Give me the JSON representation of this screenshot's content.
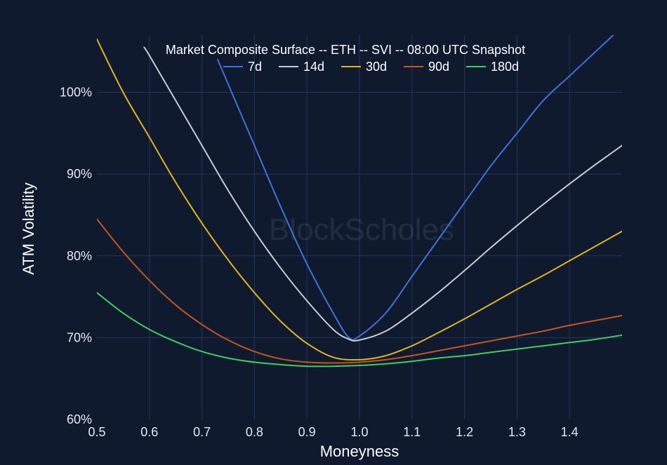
{
  "chart_data": {
    "type": "line",
    "title": "Market Composite Surface -- ETH -- SVI -- 08:00 UTC Snapshot",
    "xlabel": "Moneyness",
    "ylabel": "ATM Volatility",
    "watermark": "BlockScholes",
    "xlim": [
      0.5,
      1.5
    ],
    "ylim": [
      60,
      107
    ],
    "x_ticks": [
      "0.5",
      "0.6",
      "0.7",
      "0.8",
      "0.9",
      "1.0",
      "1.1",
      "1.2",
      "1.3",
      "1.4"
    ],
    "x_tick_values": [
      0.5,
      0.6,
      0.7,
      0.8,
      0.9,
      1.0,
      1.1,
      1.2,
      1.3,
      1.4
    ],
    "y_ticks": [
      "60%",
      "70%",
      "80%",
      "90%",
      "100%"
    ],
    "y_tick_values": [
      60,
      70,
      80,
      90,
      100
    ],
    "grid": true,
    "legend_position": "top",
    "series": [
      {
        "name": "7d",
        "color": "#3b74d9",
        "x": [
          0.73,
          0.75,
          0.8,
          0.85,
          0.9,
          0.95,
          0.98,
          1.0,
          1.05,
          1.1,
          1.15,
          1.2,
          1.25,
          1.3,
          1.35,
          1.4,
          1.45,
          1.5
        ],
        "y": [
          104,
          101,
          93.5,
          86,
          79,
          73,
          70,
          70.2,
          73,
          77.5,
          82,
          86.5,
          91,
          95,
          99,
          102,
          105,
          108
        ]
      },
      {
        "name": "14d",
        "color": "#c8ccd2",
        "x": [
          0.59,
          0.6,
          0.65,
          0.7,
          0.75,
          0.8,
          0.85,
          0.9,
          0.95,
          0.98,
          1.0,
          1.05,
          1.1,
          1.15,
          1.2,
          1.25,
          1.3,
          1.35,
          1.4,
          1.45,
          1.5
        ],
        "y": [
          105.5,
          104.5,
          99,
          93.5,
          88,
          83,
          78.5,
          74.5,
          71,
          69.8,
          69.7,
          70.8,
          73,
          75.5,
          78.2,
          81,
          83.7,
          86.3,
          88.8,
          91.2,
          93.5
        ]
      },
      {
        "name": "30d",
        "color": "#e0b21e",
        "x": [
          0.5,
          0.55,
          0.6,
          0.65,
          0.7,
          0.75,
          0.8,
          0.85,
          0.9,
          0.95,
          1.0,
          1.05,
          1.1,
          1.15,
          1.2,
          1.25,
          1.3,
          1.35,
          1.4,
          1.45,
          1.5
        ],
        "y": [
          106.5,
          100,
          94.5,
          89,
          84,
          79.5,
          75.5,
          72,
          69.3,
          67.6,
          67.3,
          67.8,
          69,
          70.6,
          72.3,
          74.1,
          75.9,
          77.6,
          79.4,
          81.2,
          83
        ]
      },
      {
        "name": "90d",
        "color": "#c4551f",
        "x": [
          0.5,
          0.55,
          0.6,
          0.65,
          0.7,
          0.75,
          0.8,
          0.85,
          0.9,
          0.95,
          1.0,
          1.05,
          1.1,
          1.15,
          1.2,
          1.25,
          1.3,
          1.35,
          1.4,
          1.45,
          1.5
        ],
        "y": [
          84.5,
          80.5,
          77,
          74,
          71.6,
          69.7,
          68.3,
          67.4,
          67,
          66.9,
          67,
          67.3,
          67.8,
          68.4,
          69,
          69.6,
          70.2,
          70.8,
          71.5,
          72.1,
          72.7
        ]
      },
      {
        "name": "180d",
        "color": "#3ecf5c",
        "x": [
          0.5,
          0.55,
          0.6,
          0.65,
          0.7,
          0.75,
          0.8,
          0.85,
          0.9,
          0.95,
          1.0,
          1.05,
          1.1,
          1.15,
          1.2,
          1.25,
          1.3,
          1.35,
          1.4,
          1.45,
          1.5
        ],
        "y": [
          75.5,
          73,
          71,
          69.5,
          68.3,
          67.5,
          67,
          66.7,
          66.5,
          66.5,
          66.6,
          66.8,
          67.1,
          67.5,
          67.8,
          68.2,
          68.6,
          69,
          69.4,
          69.8,
          70.3
        ]
      }
    ]
  }
}
